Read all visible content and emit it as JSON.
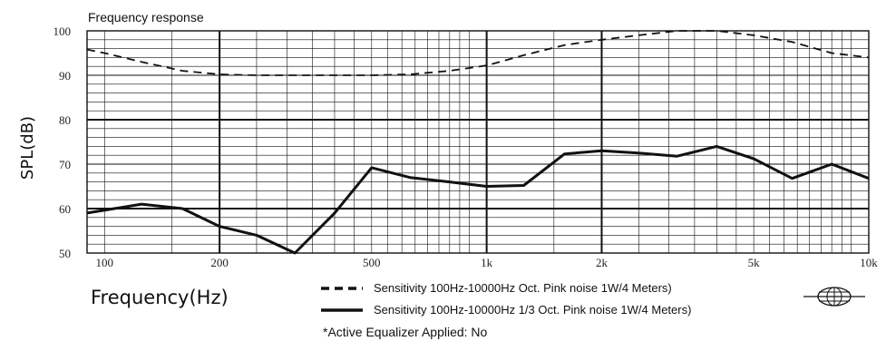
{
  "chart_data": {
    "type": "line",
    "title": "Frequency response",
    "xlabel": "Frequency(Hz)",
    "ylabel": "SPL(dB)",
    "xscale": "log",
    "xlim": [
      90,
      10000
    ],
    "ylim": [
      50,
      100
    ],
    "grid": true,
    "x_tick_values": [
      100,
      200,
      500,
      1000,
      2000,
      5000,
      10000
    ],
    "x_tick_labels": [
      "100",
      "200",
      "500",
      "1k",
      "2k",
      "5k",
      "10k"
    ],
    "y_ticks": [
      50,
      60,
      70,
      80,
      90,
      100
    ],
    "legend_position": "bottom",
    "series": [
      {
        "name": "Sensitivity 100Hz-10000Hz Oct. Pink noise 1W/4 Meters)",
        "style": "dashed",
        "x": [
          90,
          100,
          125,
          160,
          200,
          250,
          315,
          400,
          500,
          630,
          800,
          1000,
          1250,
          1600,
          2000,
          2500,
          3150,
          4000,
          5000,
          6300,
          8000,
          10000
        ],
        "y": [
          95.8,
          95,
          93,
          91,
          90.2,
          90,
          90,
          90,
          90,
          90.2,
          91,
          92.2,
          94.5,
          96.8,
          98,
          99,
          100,
          100,
          99,
          97.5,
          95,
          94
        ]
      },
      {
        "name": "Sensitivity 100Hz-10000Hz 1/3 Oct. Pink noise 1W/4 Meters)",
        "style": "solid",
        "x": [
          90,
          125,
          160,
          200,
          250,
          315,
          400,
          500,
          630,
          800,
          1000,
          1250,
          1600,
          2000,
          2500,
          3150,
          4000,
          5000,
          6300,
          8000,
          10000
        ],
        "y": [
          59,
          61,
          60,
          56,
          54,
          50,
          59,
          69.2,
          67,
          66,
          65,
          65.2,
          72.3,
          73,
          72.5,
          71.8,
          74,
          71.2,
          66.8,
          70,
          66.8
        ]
      }
    ],
    "annotation": "*Active Equalizer Applied: No"
  }
}
